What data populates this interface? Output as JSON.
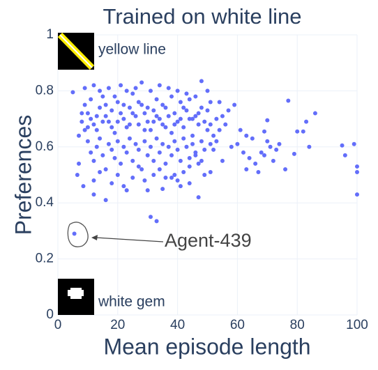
{
  "chart_data": {
    "type": "scatter",
    "title": "Trained on white line",
    "xlabel": "Mean episode length",
    "ylabel": "Preferences",
    "color": "#636efa",
    "grid": true,
    "xlim": [
      0,
      100
    ],
    "ylim": [
      0,
      1
    ],
    "xticks": [
      0,
      20,
      40,
      60,
      80,
      100
    ],
    "yticks": [
      0,
      0.2,
      0.4,
      0.6,
      0.8,
      1
    ],
    "annotations": [
      "Agent-439",
      "yellow line",
      "white gem"
    ],
    "x": [
      5.5,
      5,
      7,
      7,
      6.5,
      8.5,
      12,
      16,
      31,
      33,
      23,
      30,
      35,
      48,
      50,
      61,
      63,
      62,
      60,
      64,
      63,
      66,
      68,
      67,
      69,
      70,
      71,
      72,
      73,
      74,
      76,
      77,
      79,
      80,
      82,
      83,
      84,
      86,
      95,
      96,
      99,
      100,
      100,
      100,
      70,
      69,
      65,
      58,
      57,
      56,
      59,
      55,
      53,
      47,
      49,
      51,
      38,
      39,
      40,
      41,
      44,
      9,
      10,
      11,
      12,
      13,
      14,
      15,
      16,
      17,
      18,
      19,
      20,
      21,
      22,
      23,
      24,
      25,
      26,
      27,
      28,
      29,
      30,
      31,
      32,
      33,
      34,
      35,
      36,
      37,
      38,
      39,
      40,
      41,
      42,
      43,
      44,
      45,
      46,
      47,
      48,
      10,
      11,
      12,
      13,
      14,
      15,
      16,
      17,
      18,
      19,
      20,
      21,
      22,
      23,
      24,
      25,
      26,
      27,
      28,
      29,
      30,
      31,
      32,
      33,
      34,
      35,
      36,
      37,
      38,
      39,
      40,
      41,
      42,
      43,
      44,
      45,
      46,
      47,
      48,
      49,
      9,
      12,
      14,
      17,
      21,
      23,
      26,
      28,
      31,
      34,
      37,
      40,
      43,
      46,
      8,
      8,
      9,
      10,
      11,
      13,
      15,
      16,
      18,
      19,
      20,
      22,
      24,
      25,
      27,
      29,
      30,
      32,
      33,
      35,
      36,
      38,
      39,
      41,
      42,
      44,
      45,
      47,
      49,
      50,
      12,
      14,
      18,
      20,
      22,
      25,
      27,
      29,
      32,
      34,
      36,
      42,
      44,
      46,
      48,
      51,
      52,
      53,
      54,
      52,
      55,
      54,
      51,
      50,
      51
    ],
    "values": [
      0.29,
      0.795,
      0.64,
      0.54,
      0.5,
      0.46,
      0.43,
      0.41,
      0.35,
      0.335,
      0.445,
      0.445,
      0.45,
      0.835,
      0.8,
      0.66,
      0.64,
      0.58,
      0.61,
      0.56,
      0.52,
      0.54,
      0.58,
      0.51,
      0.57,
      0.62,
      0.6,
      0.55,
      0.59,
      0.61,
      0.52,
      0.765,
      0.575,
      0.655,
      0.655,
      0.69,
      0.6,
      0.72,
      0.605,
      0.57,
      0.61,
      0.53,
      0.43,
      0.51,
      0.695,
      0.655,
      0.63,
      0.6,
      0.73,
      0.68,
      0.75,
      0.55,
      0.62,
      0.42,
      0.5,
      0.51,
      0.49,
      0.5,
      0.48,
      0.46,
      0.47,
      0.75,
      0.72,
      0.7,
      0.68,
      0.66,
      0.74,
      0.78,
      0.71,
      0.69,
      0.73,
      0.65,
      0.76,
      0.72,
      0.7,
      0.67,
      0.74,
      0.79,
      0.71,
      0.68,
      0.75,
      0.72,
      0.69,
      0.66,
      0.73,
      0.77,
      0.7,
      0.68,
      0.74,
      0.71,
      0.65,
      0.72,
      0.69,
      0.76,
      0.67,
      0.73,
      0.7,
      0.64,
      0.71,
      0.68,
      0.74,
      0.62,
      0.58,
      0.55,
      0.6,
      0.63,
      0.57,
      0.52,
      0.61,
      0.59,
      0.56,
      0.62,
      0.54,
      0.6,
      0.58,
      0.63,
      0.55,
      0.61,
      0.59,
      0.52,
      0.62,
      0.57,
      0.6,
      0.55,
      0.63,
      0.58,
      0.61,
      0.54,
      0.6,
      0.57,
      0.62,
      0.59,
      0.55,
      0.63,
      0.6,
      0.56,
      0.61,
      0.58,
      0.54,
      0.62,
      0.59,
      0.81,
      0.82,
      0.8,
      0.81,
      0.82,
      0.8,
      0.81,
      0.83,
      0.8,
      0.82,
      0.81,
      0.8,
      0.79,
      0.78,
      0.69,
      0.72,
      0.66,
      0.67,
      0.77,
      0.71,
      0.69,
      0.75,
      0.67,
      0.78,
      0.69,
      0.75,
      0.68,
      0.72,
      0.76,
      0.66,
      0.74,
      0.69,
      0.71,
      0.75,
      0.67,
      0.78,
      0.68,
      0.7,
      0.74,
      0.77,
      0.7,
      0.72,
      0.69,
      0.73,
      0.48,
      0.51,
      0.47,
      0.5,
      0.46,
      0.49,
      0.53,
      0.48,
      0.5,
      0.52,
      0.49,
      0.51,
      0.53,
      0.57,
      0.55,
      0.68,
      0.64,
      0.7,
      0.66,
      0.59,
      0.71,
      0.76,
      0.76,
      0.66,
      0.61
    ]
  }
}
